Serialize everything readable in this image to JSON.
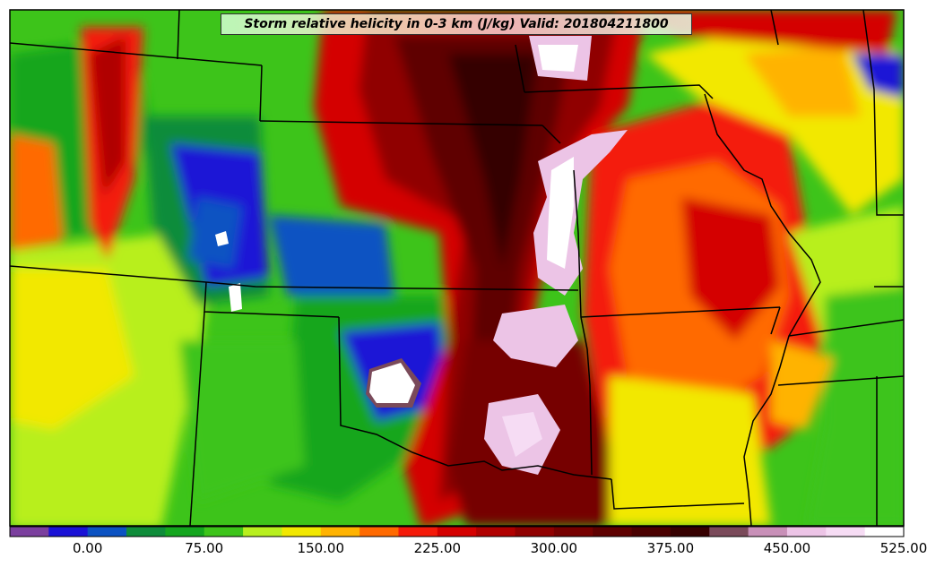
{
  "title": "Storm relative helicity in 0-3 km (J/kg) Valid: 201804211800",
  "colorbar": {
    "colors": [
      "#7b3f9e",
      "#1a12d6",
      "#0b52c2",
      "#0e8c3a",
      "#14a61e",
      "#3dc41a",
      "#b8ef1e",
      "#f2e800",
      "#ffb300",
      "#ff6a00",
      "#f41a0a",
      "#d40000",
      "#b00000",
      "#900000",
      "#760000",
      "#5e0000",
      "#4a0000",
      "#360000",
      "#7a4a5a",
      "#c890b8",
      "#ecc4e6",
      "#f6dcf4",
      "#ffffff"
    ],
    "tick_labels": [
      "0.00",
      "75.00",
      "150.00",
      "225.00",
      "300.00",
      "375.00",
      "450.00",
      "525.00"
    ]
  }
}
